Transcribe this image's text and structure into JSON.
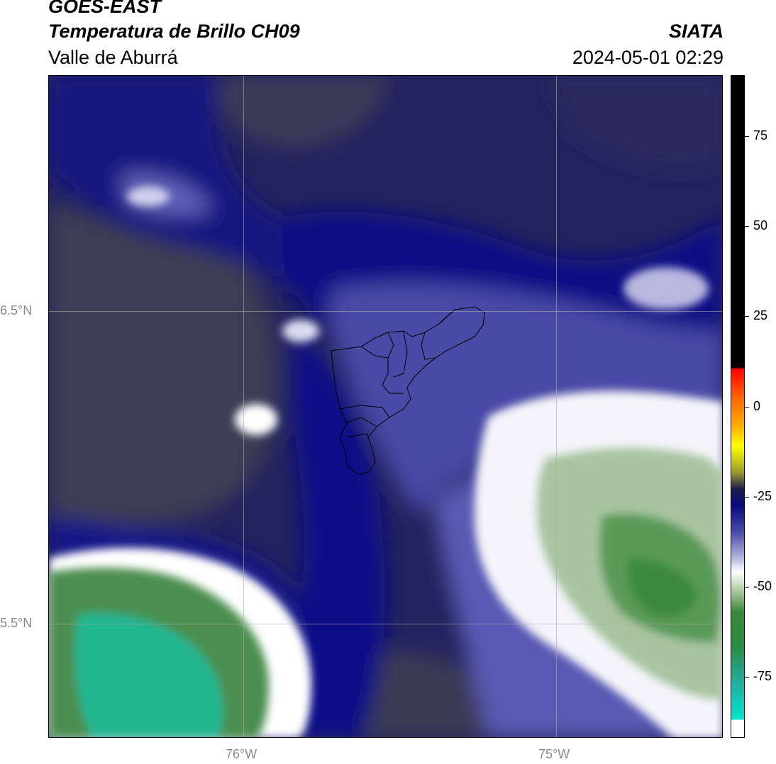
{
  "header": {
    "satellite": "GOES-EAST",
    "product": "Temperatura de Brillo CH09",
    "region": "Valle de Aburrá",
    "organization": "SIATA",
    "datetime": "2024-05-01 02:29"
  },
  "map": {
    "lat_labels": [
      "6.5°N",
      "5.5°N"
    ],
    "lon_labels": [
      "76°W",
      "75°W"
    ]
  },
  "colorbar": {
    "ticks": [
      "75",
      "50",
      "25",
      "0",
      "-25",
      "-50",
      "-75"
    ],
    "range": [
      -92,
      92
    ],
    "colors": {
      "warm": "#000000",
      "hot": "#ff0000",
      "mid_dark": "#1c1c4a",
      "navy": "#0a0a80",
      "blue": "#4a4aa8",
      "white": "#ffffff",
      "green": "#3a8a3a",
      "cyan": "#00e6d2"
    }
  }
}
